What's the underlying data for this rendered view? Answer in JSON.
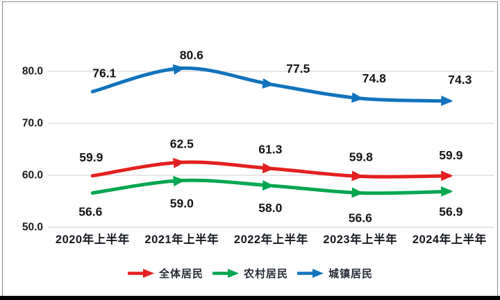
{
  "chart_data": {
    "type": "line",
    "title": "",
    "categories": [
      "2020年上半年",
      "2021年上半年",
      "2022年上半年",
      "2023年上半年",
      "2024年上半年"
    ],
    "series": [
      {
        "name": "全体居民",
        "color": "#e3201f",
        "values": [
          59.9,
          62.5,
          61.3,
          59.8,
          59.9
        ],
        "point_labels": [
          "59.9",
          "62.5",
          "61.3",
          "59.8",
          "59.9"
        ]
      },
      {
        "name": "农村居民",
        "color": "#00a64f",
        "values": [
          56.6,
          59.0,
          58.0,
          56.6,
          56.9
        ],
        "point_labels": [
          "56.6",
          "59.0",
          "58.0",
          "56.6",
          "56.9"
        ]
      },
      {
        "name": "城镇居民",
        "color": "#1173bd",
        "values": [
          76.1,
          80.6,
          77.5,
          74.8,
          74.3
        ],
        "point_labels": [
          "76.1",
          "80.6",
          "77.5",
          "74.8",
          "74.3"
        ]
      }
    ],
    "y_tick_labels": [
      "50.0",
      "60.0",
      "70.0",
      "80.0"
    ],
    "y_tick_values": [
      50,
      60,
      70,
      80
    ],
    "ylim": [
      50,
      86
    ],
    "grid": true,
    "legend_position": "bottom",
    "marker": "right-arrow"
  },
  "colors": {
    "grid": "#d6d6d6",
    "text": "#1a1a1a",
    "frame_border": "#8a8a8a",
    "bottom_bar": "#000000",
    "background": "#ffffff"
  }
}
